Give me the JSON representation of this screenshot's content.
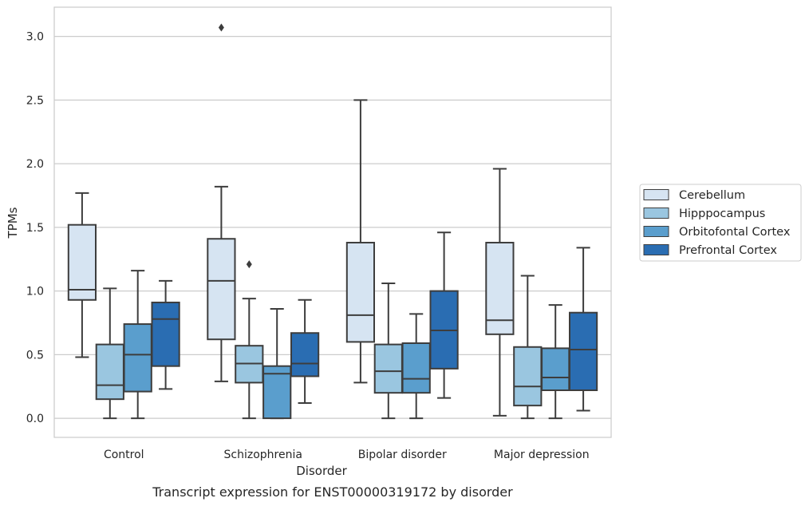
{
  "chart_data": {
    "type": "box",
    "caption": "Transcript expression for ENST00000319172 by disorder",
    "xlabel": "Disorder",
    "ylabel": "TPMs",
    "ylim": [
      -0.15,
      3.23
    ],
    "yticks": [
      0.0,
      0.5,
      1.0,
      1.5,
      2.0,
      2.5,
      3.0
    ],
    "ytick_labels": [
      "0.0",
      "0.5",
      "1.0",
      "1.5",
      "2.0",
      "2.5",
      "3.0"
    ],
    "grid": "horizontal",
    "legend_position": "right",
    "categories": [
      "Control",
      "Schizophrenia",
      "Bipolar disorder",
      "Major depression"
    ],
    "series": [
      {
        "name": "Cerebellum",
        "color": "#d6e4f2",
        "boxes": [
          {
            "whislo": 0.48,
            "q1": 0.93,
            "med": 1.01,
            "q3": 1.52,
            "whishi": 1.77,
            "fliers": []
          },
          {
            "whislo": 0.29,
            "q1": 0.62,
            "med": 1.08,
            "q3": 1.41,
            "whishi": 1.82,
            "fliers": [
              3.07
            ]
          },
          {
            "whislo": 0.28,
            "q1": 0.6,
            "med": 0.81,
            "q3": 1.38,
            "whishi": 2.5,
            "fliers": []
          },
          {
            "whislo": 0.02,
            "q1": 0.66,
            "med": 0.77,
            "q3": 1.38,
            "whishi": 1.96,
            "fliers": []
          }
        ]
      },
      {
        "name": "Hipppocampus",
        "color": "#9ac6e0",
        "boxes": [
          {
            "whislo": 0.0,
            "q1": 0.15,
            "med": 0.26,
            "q3": 0.58,
            "whishi": 1.02,
            "fliers": []
          },
          {
            "whislo": 0.0,
            "q1": 0.28,
            "med": 0.43,
            "q3": 0.57,
            "whishi": 0.94,
            "fliers": [
              1.21
            ]
          },
          {
            "whislo": 0.0,
            "q1": 0.2,
            "med": 0.37,
            "q3": 0.58,
            "whishi": 1.06,
            "fliers": []
          },
          {
            "whislo": 0.0,
            "q1": 0.1,
            "med": 0.25,
            "q3": 0.56,
            "whishi": 1.12,
            "fliers": []
          }
        ]
      },
      {
        "name": "Orbitofontal Cortex",
        "color": "#5a9ecd",
        "boxes": [
          {
            "whislo": 0.0,
            "q1": 0.21,
            "med": 0.5,
            "q3": 0.74,
            "whishi": 1.16,
            "fliers": []
          },
          {
            "whislo": 0.0,
            "q1": 0.0,
            "med": 0.35,
            "q3": 0.41,
            "whishi": 0.86,
            "fliers": []
          },
          {
            "whislo": 0.0,
            "q1": 0.2,
            "med": 0.31,
            "q3": 0.59,
            "whishi": 0.82,
            "fliers": []
          },
          {
            "whislo": 0.0,
            "q1": 0.22,
            "med": 0.32,
            "q3": 0.55,
            "whishi": 0.89,
            "fliers": []
          }
        ]
      },
      {
        "name": "Prefrontal Cortex",
        "color": "#2a6db2",
        "boxes": [
          {
            "whislo": 0.23,
            "q1": 0.41,
            "med": 0.78,
            "q3": 0.91,
            "whishi": 1.08,
            "fliers": []
          },
          {
            "whislo": 0.12,
            "q1": 0.33,
            "med": 0.43,
            "q3": 0.67,
            "whishi": 0.93,
            "fliers": []
          },
          {
            "whislo": 0.16,
            "q1": 0.39,
            "med": 0.69,
            "q3": 1.0,
            "whishi": 1.46,
            "fliers": []
          },
          {
            "whislo": 0.06,
            "q1": 0.22,
            "med": 0.54,
            "q3": 0.83,
            "whishi": 1.34,
            "fliers": []
          }
        ]
      }
    ]
  }
}
